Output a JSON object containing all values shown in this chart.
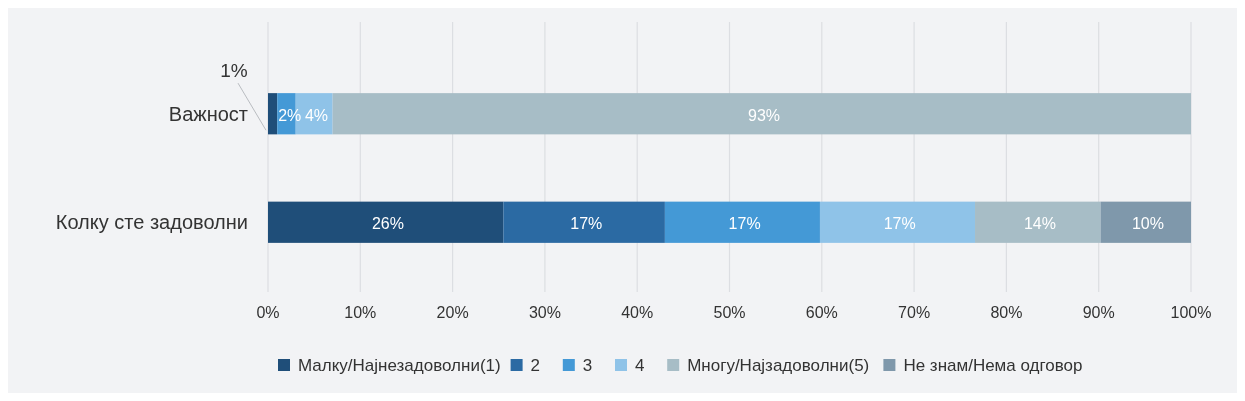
{
  "chart_data": {
    "type": "bar",
    "orientation": "horizontal",
    "stacked": true,
    "categories": [
      "Важност",
      "Колку сте задоволни"
    ],
    "series": [
      {
        "name": "Малку/Најнезадоволни(1)",
        "color": "#1f4e79",
        "values": [
          1,
          25.5
        ],
        "value_labels": [
          "1%",
          "26%"
        ]
      },
      {
        "name": "2",
        "color": "#2b6aa3",
        "values": [
          0,
          17.5
        ],
        "value_labels": [
          null,
          "17%"
        ]
      },
      {
        "name": "3",
        "color": "#4499d6",
        "values": [
          2,
          16.8
        ],
        "value_labels": [
          "2%",
          "17%"
        ]
      },
      {
        "name": "4",
        "color": "#8fc3e8",
        "values": [
          4,
          16.8
        ],
        "value_labels": [
          "4%",
          "17%"
        ]
      },
      {
        "name": "Многу/Најзадоволни(5)",
        "color": "#a7bdc6",
        "values": [
          93,
          13.6
        ],
        "value_labels": [
          "93%",
          "14%"
        ]
      },
      {
        "name": "Не знам/Нема одговор",
        "color": "#7f98ab",
        "values": [
          null,
          9.8
        ],
        "value_labels": [
          null,
          "10%"
        ]
      }
    ],
    "xlim": [
      0,
      100
    ],
    "xticks": [
      {
        "value": 0,
        "label": "0%"
      },
      {
        "value": 10,
        "label": "10%"
      },
      {
        "value": 20,
        "label": "20%"
      },
      {
        "value": 30,
        "label": "30%"
      },
      {
        "value": 40,
        "label": "40%"
      },
      {
        "value": 50,
        "label": "50%"
      },
      {
        "value": 60,
        "label": "60%"
      },
      {
        "value": 70,
        "label": "70%"
      },
      {
        "value": 80,
        "label": "80%"
      },
      {
        "value": 90,
        "label": "90%"
      },
      {
        "value": 100,
        "label": "100%"
      }
    ],
    "grid": "x",
    "legend": "bottom"
  }
}
